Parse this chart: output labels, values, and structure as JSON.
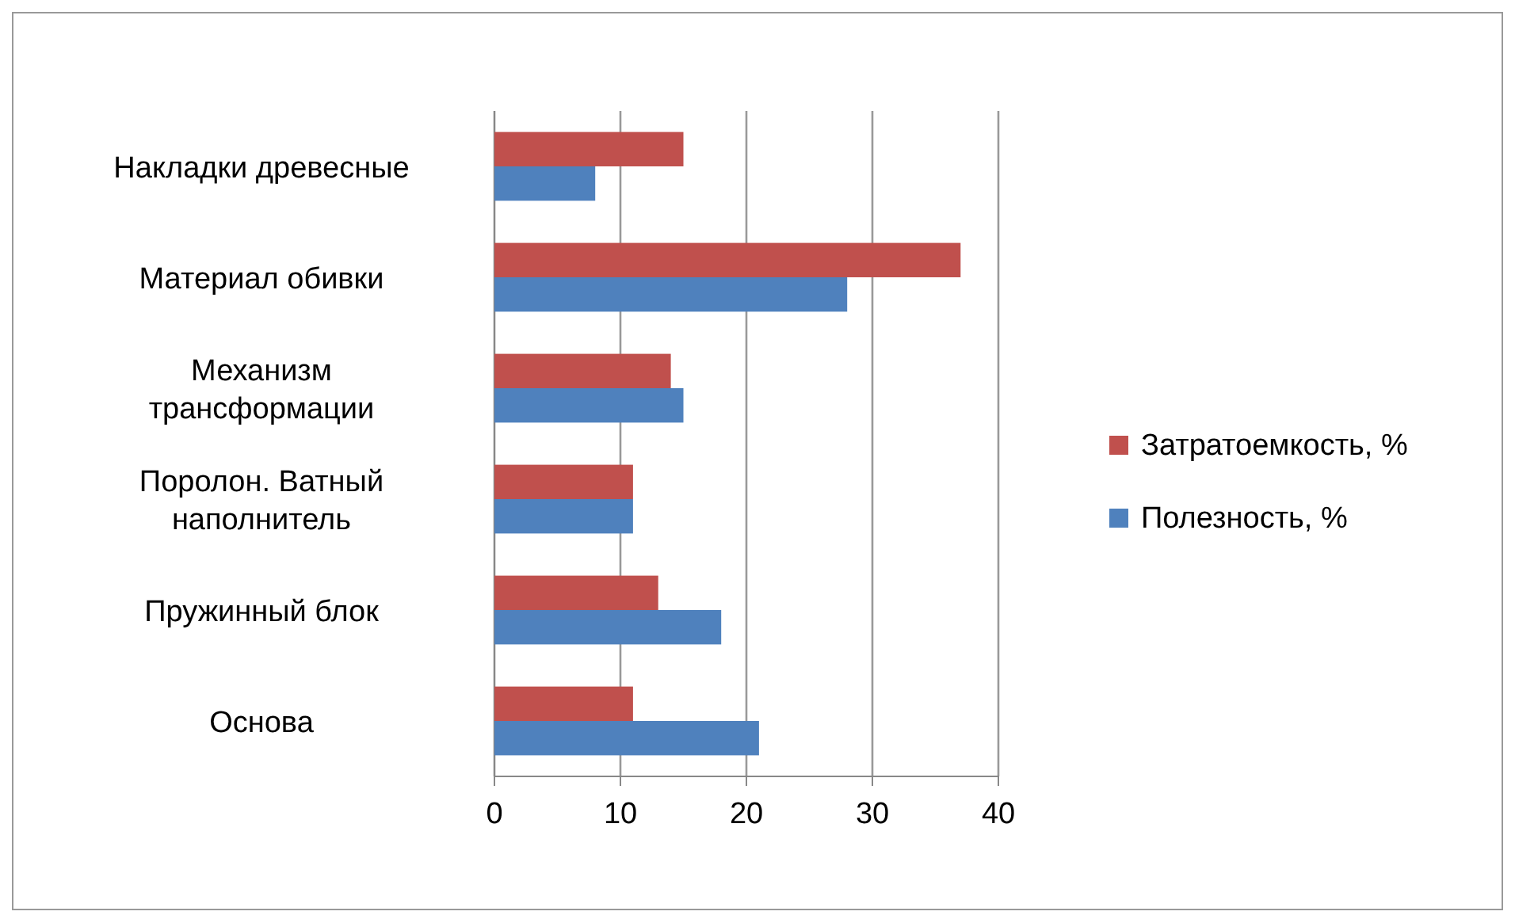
{
  "chart_data": {
    "type": "bar",
    "orientation": "horizontal",
    "categories": [
      "Накладки древесные",
      "Материал обивки",
      "Механизм трансформации",
      "Поролон. Ватный наполнитель",
      "Пружинный блок",
      "Основа"
    ],
    "series": [
      {
        "name": "Затратоемкость, %",
        "color": "#c0504d",
        "values": [
          15,
          37,
          14,
          11,
          13,
          11
        ]
      },
      {
        "name": "Полезность, %",
        "color": "#4f81bd",
        "values": [
          8,
          28,
          15,
          11,
          18,
          21
        ]
      }
    ],
    "xlim": [
      0,
      40
    ],
    "xticks": [
      0,
      10,
      20,
      30,
      40
    ],
    "grid": "x",
    "legend": "right"
  }
}
